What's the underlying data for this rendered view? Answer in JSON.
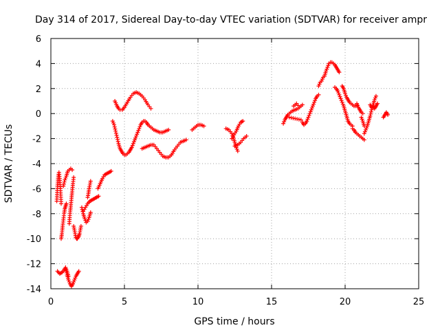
{
  "chart_data": {
    "type": "scatter",
    "title": "Day 314 of 2017, Sidereal Day-to-day VTEC variation (SDTVAR) for receiver ampr",
    "xlabel": "GPS time / hours",
    "ylabel": "SDTVAR / TECUs",
    "xlim": [
      0,
      25
    ],
    "ylim": [
      -14,
      6
    ],
    "xticks": [
      0,
      5,
      10,
      15,
      20,
      25
    ],
    "yticks": [
      -14,
      -12,
      -10,
      -8,
      -6,
      -4,
      -2,
      0,
      2,
      4,
      6
    ],
    "grid": true,
    "marker": "+",
    "color": "#ff0000",
    "series": [
      {
        "name": "seg01",
        "x": [
          0.4,
          0.45,
          0.5,
          0.55,
          0.6,
          0.65,
          0.7
        ],
        "y": [
          -7.0,
          -5.8,
          -5.0,
          -4.7,
          -5.2,
          -6.0,
          -7.2
        ]
      },
      {
        "name": "seg02",
        "x": [
          0.45,
          0.6,
          0.75,
          0.9,
          1.0,
          1.1,
          1.2
        ],
        "y": [
          -12.6,
          -12.8,
          -12.7,
          -12.5,
          -12.3,
          -12.6,
          -13.0
        ]
      },
      {
        "name": "seg03",
        "x": [
          0.7,
          0.75,
          0.8,
          0.85,
          0.9,
          0.95,
          1.0,
          1.05
        ],
        "y": [
          -10.0,
          -9.6,
          -9.0,
          -8.5,
          -8.0,
          -7.6,
          -7.4,
          -7.2
        ]
      },
      {
        "name": "seg04",
        "x": [
          0.85,
          0.95,
          1.05,
          1.15,
          1.25,
          1.35,
          1.45
        ],
        "y": [
          -5.8,
          -5.3,
          -5.0,
          -4.6,
          -4.5,
          -4.4,
          -4.5
        ]
      },
      {
        "name": "seg05",
        "x": [
          1.25,
          1.3,
          1.35,
          1.4,
          1.45,
          1.5,
          1.55
        ],
        "y": [
          -8.8,
          -8.0,
          -7.4,
          -6.8,
          -6.2,
          -5.6,
          -5.1
        ]
      },
      {
        "name": "seg06",
        "x": [
          1.0,
          1.1,
          1.2,
          1.3,
          1.4,
          1.5,
          1.6,
          1.7,
          1.8,
          1.9
        ],
        "y": [
          -12.4,
          -12.9,
          -13.3,
          -13.6,
          -13.8,
          -13.6,
          -13.3,
          -13.0,
          -12.8,
          -12.6
        ]
      },
      {
        "name": "seg07",
        "x": [
          1.55,
          1.6,
          1.65,
          1.7,
          1.75,
          1.8,
          1.85,
          1.9,
          1.95,
          2.0,
          2.05
        ],
        "y": [
          -9.0,
          -9.3,
          -9.6,
          -9.9,
          -10.0,
          -10.0,
          -9.9,
          -9.8,
          -9.6,
          -9.3,
          -9.0
        ]
      },
      {
        "name": "seg08",
        "x": [
          2.1,
          2.2,
          2.3,
          2.4,
          2.5,
          2.6,
          2.7
        ],
        "y": [
          -7.5,
          -8.0,
          -8.4,
          -8.7,
          -8.6,
          -8.3,
          -7.9
        ]
      },
      {
        "name": "seg09",
        "x": [
          2.2,
          2.35,
          2.5,
          2.65,
          2.8,
          2.95,
          3.1,
          3.25
        ],
        "y": [
          -7.8,
          -7.5,
          -7.2,
          -7.0,
          -6.9,
          -6.8,
          -6.7,
          -6.6
        ]
      },
      {
        "name": "seg10",
        "x": [
          2.5,
          2.55,
          2.6,
          2.65,
          2.7
        ],
        "y": [
          -6.7,
          -6.4,
          -6.0,
          -5.7,
          -5.4
        ]
      },
      {
        "name": "seg11",
        "x": [
          3.2,
          3.35,
          3.5,
          3.65,
          3.8,
          3.95,
          4.1
        ],
        "y": [
          -6.0,
          -5.6,
          -5.2,
          -4.9,
          -4.8,
          -4.7,
          -4.6
        ]
      },
      {
        "name": "seg12",
        "x": [
          4.35,
          4.5,
          4.6,
          4.7,
          4.85,
          5.0,
          5.2,
          5.4,
          5.6,
          5.8,
          6.0,
          6.2,
          6.4,
          6.6,
          6.8
        ],
        "y": [
          1.0,
          0.6,
          0.4,
          0.3,
          0.3,
          0.5,
          0.9,
          1.3,
          1.6,
          1.7,
          1.6,
          1.4,
          1.1,
          0.7,
          0.4
        ]
      },
      {
        "name": "seg13",
        "x": [
          4.2,
          4.3,
          4.4,
          4.5,
          4.6,
          4.7,
          4.8,
          4.9,
          5.0,
          5.1,
          5.2,
          5.3,
          5.4,
          5.5,
          5.6,
          5.7,
          5.8,
          5.9,
          6.0,
          6.1,
          6.2,
          6.3,
          6.4,
          6.5,
          6.6,
          6.8,
          7.0,
          7.2,
          7.4,
          7.6,
          7.8,
          8.0
        ],
        "y": [
          -0.6,
          -0.9,
          -1.4,
          -1.9,
          -2.4,
          -2.8,
          -3.0,
          -3.2,
          -3.3,
          -3.3,
          -3.2,
          -3.1,
          -2.9,
          -2.7,
          -2.4,
          -2.1,
          -1.8,
          -1.5,
          -1.2,
          -0.9,
          -0.7,
          -0.6,
          -0.6,
          -0.7,
          -0.9,
          -1.1,
          -1.3,
          -1.4,
          -1.5,
          -1.5,
          -1.4,
          -1.3
        ]
      },
      {
        "name": "seg14",
        "x": [
          6.2,
          6.4,
          6.6,
          6.8,
          7.0,
          7.2,
          7.4,
          7.6,
          7.8,
          8.0,
          8.2,
          8.4,
          8.6,
          8.8,
          9.0,
          9.2
        ],
        "y": [
          -2.8,
          -2.7,
          -2.6,
          -2.5,
          -2.5,
          -2.8,
          -3.1,
          -3.4,
          -3.5,
          -3.5,
          -3.3,
          -2.9,
          -2.6,
          -2.3,
          -2.2,
          -2.1
        ]
      },
      {
        "name": "seg15",
        "x": [
          9.6,
          9.8,
          10.0,
          10.2,
          10.4
        ],
        "y": [
          -1.3,
          -1.1,
          -0.9,
          -0.9,
          -1.0
        ]
      },
      {
        "name": "seg16",
        "x": [
          11.9,
          12.1,
          12.3,
          12.4,
          12.5,
          12.6,
          12.7
        ],
        "y": [
          -1.2,
          -1.3,
          -1.6,
          -1.9,
          -2.3,
          -2.7,
          -3.0
        ]
      },
      {
        "name": "seg17",
        "x": [
          12.3,
          12.45,
          12.6,
          12.75,
          12.9,
          13.05
        ],
        "y": [
          -2.0,
          -1.7,
          -1.4,
          -1.0,
          -0.7,
          -0.6
        ]
      },
      {
        "name": "seg18",
        "x": [
          12.5,
          12.7,
          12.9,
          13.1,
          13.3
        ],
        "y": [
          -2.6,
          -2.5,
          -2.3,
          -2.0,
          -1.8
        ]
      },
      {
        "name": "seg19",
        "x": [
          15.8,
          15.9,
          16.0,
          16.1,
          16.2,
          16.3,
          16.4,
          16.6,
          16.8
        ],
        "y": [
          -0.8,
          -0.5,
          -0.3,
          -0.1,
          0.0,
          0.1,
          0.2,
          0.3,
          0.4
        ]
      },
      {
        "name": "seg20",
        "x": [
          16.5,
          16.7,
          16.9,
          17.1
        ],
        "y": [
          0.6,
          0.8,
          0.5,
          0.7
        ]
      },
      {
        "name": "seg21",
        "x": [
          16.2,
          16.6,
          17.0
        ],
        "y": [
          -0.3,
          -0.4,
          -0.5
        ]
      },
      {
        "name": "seg22",
        "x": [
          17.1,
          17.2,
          17.3,
          17.4,
          17.5,
          17.6,
          17.7,
          17.8,
          17.9,
          18.0,
          18.1,
          18.2
        ],
        "y": [
          -0.7,
          -0.9,
          -0.8,
          -0.6,
          -0.3,
          0.0,
          0.3,
          0.6,
          0.9,
          1.2,
          1.4,
          1.5
        ]
      },
      {
        "name": "seg23",
        "x": [
          18.2,
          18.3,
          18.4,
          18.5,
          18.6,
          18.7,
          18.8,
          18.9,
          19.0,
          19.1,
          19.2,
          19.3,
          19.4,
          19.5,
          19.6
        ],
        "y": [
          2.2,
          2.5,
          2.6,
          2.9,
          3.0,
          3.4,
          3.7,
          4.0,
          4.1,
          4.1,
          4.0,
          3.9,
          3.7,
          3.5,
          3.3
        ]
      },
      {
        "name": "seg24",
        "x": [
          19.3,
          19.4,
          19.5,
          19.6,
          19.7,
          19.8,
          19.9,
          20.0,
          20.1,
          20.2,
          20.3,
          20.4,
          20.5
        ],
        "y": [
          2.1,
          2.0,
          1.8,
          1.5,
          1.2,
          0.9,
          0.6,
          0.2,
          -0.2,
          -0.6,
          -0.8,
          -0.9,
          -1.0
        ]
      },
      {
        "name": "seg25",
        "x": [
          19.8,
          19.9,
          20.0,
          20.1,
          20.2,
          20.3,
          20.4,
          20.5,
          20.6,
          20.7,
          20.8
        ],
        "y": [
          2.2,
          2.0,
          1.6,
          1.3,
          1.1,
          0.9,
          0.8,
          0.7,
          0.6,
          0.6,
          0.7
        ]
      },
      {
        "name": "seg26",
        "x": [
          20.5,
          20.6,
          20.7,
          20.8,
          20.9,
          21.0,
          21.1,
          21.2,
          21.3
        ],
        "y": [
          -1.2,
          -1.3,
          -1.5,
          -1.6,
          -1.7,
          -1.8,
          -1.9,
          -2.0,
          -2.1
        ]
      },
      {
        "name": "seg27",
        "x": [
          20.8,
          20.9,
          21.0,
          21.1,
          21.2
        ],
        "y": [
          0.8,
          0.5,
          0.3,
          0.1,
          0.0
        ]
      },
      {
        "name": "seg28",
        "x": [
          21.1,
          21.2,
          21.3
        ],
        "y": [
          -0.3,
          -0.6,
          -1.0
        ]
      },
      {
        "name": "seg29",
        "x": [
          21.3,
          21.4,
          21.5,
          21.6,
          21.7,
          21.8,
          21.9,
          22.0,
          22.1
        ],
        "y": [
          -1.6,
          -1.3,
          -1.0,
          -0.6,
          -0.2,
          0.3,
          0.7,
          1.1,
          1.4
        ]
      },
      {
        "name": "seg30",
        "x": [
          21.7,
          21.8,
          21.9,
          22.0,
          22.1,
          22.2
        ],
        "y": [
          0.7,
          0.5,
          0.6,
          0.4,
          0.6,
          0.8
        ]
      },
      {
        "name": "seg31",
        "x": [
          22.6,
          22.7,
          22.8,
          22.9
        ],
        "y": [
          -0.3,
          -0.1,
          0.1,
          -0.1
        ]
      }
    ]
  }
}
